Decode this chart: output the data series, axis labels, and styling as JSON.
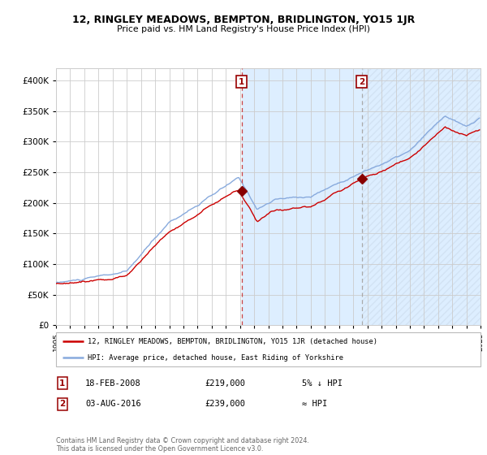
{
  "title": "12, RINGLEY MEADOWS, BEMPTON, BRIDLINGTON, YO15 1JR",
  "subtitle": "Price paid vs. HM Land Registry's House Price Index (HPI)",
  "legend_line1": "12, RINGLEY MEADOWS, BEMPTON, BRIDLINGTON, YO15 1JR (detached house)",
  "legend_line2": "HPI: Average price, detached house, East Riding of Yorkshire",
  "footnote": "Contains HM Land Registry data © Crown copyright and database right 2024.\nThis data is licensed under the Open Government Licence v3.0.",
  "transaction1": {
    "label": "1",
    "date": "18-FEB-2008",
    "price": "£219,000",
    "hpi_rel": "5% ↓ HPI",
    "year": 2008.12
  },
  "transaction2": {
    "label": "2",
    "date": "03-AUG-2016",
    "price": "£239,000",
    "hpi_rel": "≈ HPI",
    "year": 2016.59
  },
  "hpi_color": "#88aadd",
  "price_color": "#cc0000",
  "dot_color": "#880000",
  "shaded_region_color": "#ddeeff",
  "dashed_line1_color": "#cc4444",
  "dashed_line2_color": "#aaaaaa",
  "background_color": "#ffffff",
  "grid_color": "#cccccc",
  "xlim": [
    1995,
    2025
  ],
  "ylim": [
    0,
    420000
  ],
  "yticks": [
    0,
    50000,
    100000,
    150000,
    200000,
    250000,
    300000,
    350000,
    400000
  ]
}
